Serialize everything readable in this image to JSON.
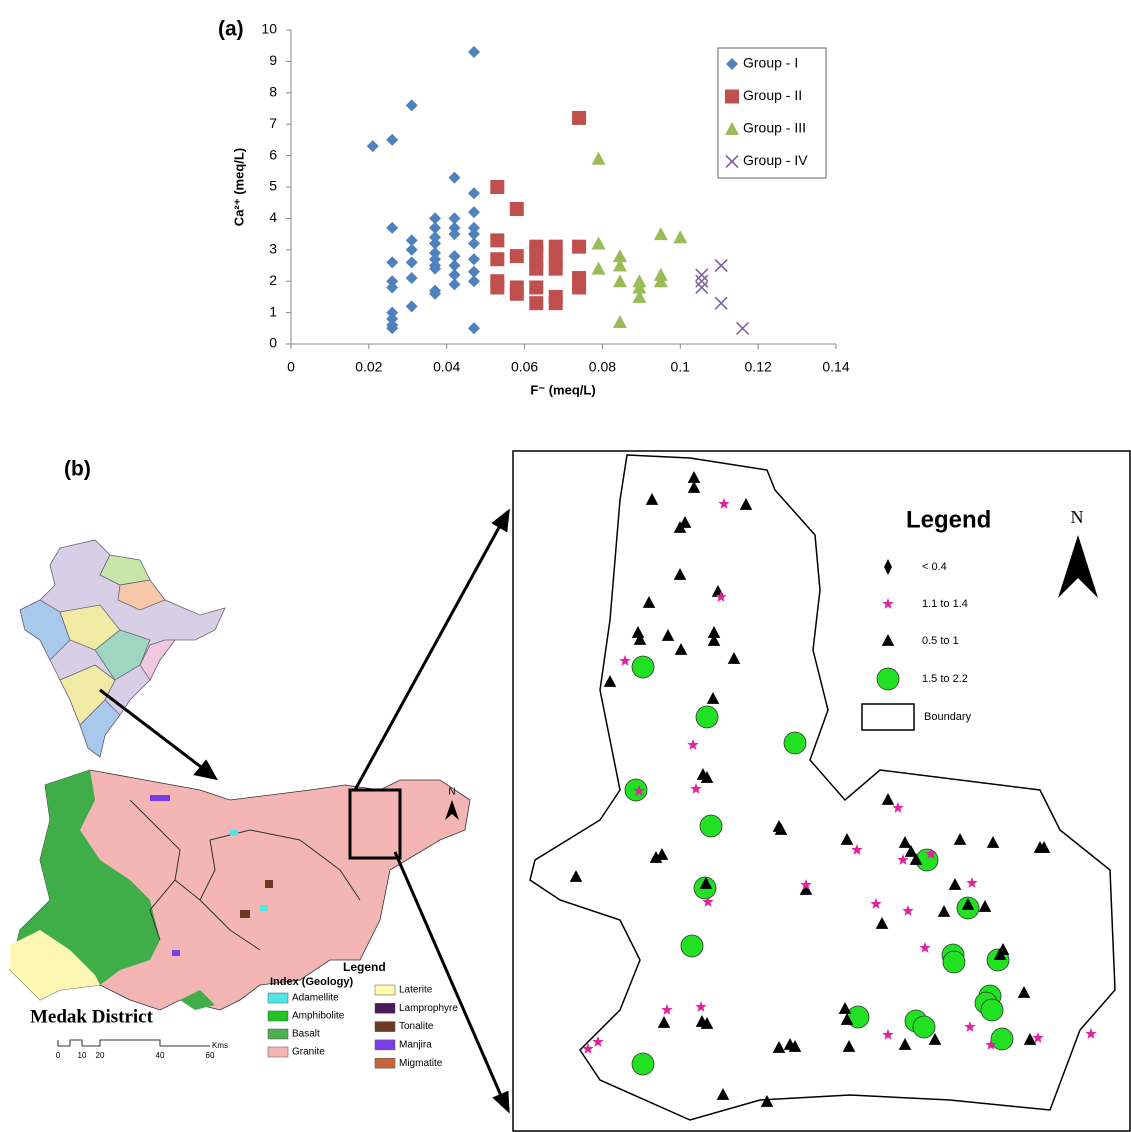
{
  "chart_data": {
    "type": "scatter",
    "title": "(a)",
    "x_label": "F⁻ (meq/L)",
    "y_label": "Ca²⁺ (meq/L)",
    "xlim": [
      0,
      0.14
    ],
    "xticks": [
      0,
      0.02,
      0.04,
      0.06,
      0.08,
      0.1,
      0.12,
      0.14
    ],
    "ylim": [
      0,
      10
    ],
    "yticks": [
      0,
      1,
      2,
      3,
      4,
      5,
      6,
      7,
      8,
      9,
      10
    ],
    "grid": false,
    "legend": "upper right",
    "series": [
      {
        "name": "Group - I",
        "color": "#4f81bd",
        "marker": "diamond",
        "x": [
          0.021,
          0.026,
          0.031,
          0.047,
          0.042,
          0.047,
          0.047,
          0.026,
          0.031,
          0.031,
          0.037,
          0.037,
          0.037,
          0.037,
          0.042,
          0.042,
          0.042,
          0.047,
          0.047,
          0.047,
          0.026,
          0.031,
          0.037,
          0.037,
          0.037,
          0.037,
          0.042,
          0.042,
          0.042,
          0.047,
          0.047,
          0.026,
          0.026,
          0.031,
          0.037,
          0.037,
          0.042,
          0.047,
          0.031,
          0.026,
          0.026,
          0.026,
          0.026,
          0.047
        ],
        "values": [
          6.3,
          6.5,
          7.6,
          9.3,
          5.3,
          4.8,
          4.2,
          3.7,
          3.3,
          3.0,
          4.0,
          3.7,
          3.4,
          3.2,
          4.0,
          3.7,
          3.5,
          3.7,
          3.5,
          3.2,
          2.6,
          2.6,
          2.9,
          2.7,
          2.5,
          2.4,
          2.8,
          2.5,
          2.2,
          2.7,
          2.3,
          2.0,
          1.8,
          2.1,
          1.7,
          1.6,
          1.9,
          2.0,
          1.2,
          1.0,
          0.8,
          0.6,
          0.5,
          0.5
        ]
      },
      {
        "name": "Group - II",
        "color": "#c0504d",
        "marker": "square",
        "x": [
          0.074,
          0.053,
          0.058,
          0.053,
          0.053,
          0.053,
          0.053,
          0.058,
          0.058,
          0.058,
          0.063,
          0.063,
          0.063,
          0.063,
          0.063,
          0.063,
          0.068,
          0.068,
          0.068,
          0.068,
          0.068,
          0.074,
          0.074,
          0.074
        ],
        "values": [
          7.2,
          5.0,
          4.3,
          3.3,
          2.7,
          2.0,
          1.8,
          2.8,
          1.8,
          1.6,
          3.1,
          2.9,
          2.6,
          2.4,
          1.8,
          1.3,
          3.1,
          2.7,
          2.4,
          1.5,
          1.3,
          3.1,
          2.1,
          1.8
        ]
      },
      {
        "name": "Group - III",
        "color": "#9bbb59",
        "marker": "triangle",
        "x": [
          0.079,
          0.079,
          0.079,
          0.0845,
          0.0845,
          0.0845,
          0.0845,
          0.0895,
          0.0895,
          0.0895,
          0.095,
          0.095,
          0.095,
          0.1
        ],
        "values": [
          5.9,
          3.2,
          2.4,
          2.8,
          2.5,
          2.0,
          0.7,
          2.0,
          1.8,
          1.5,
          3.5,
          2.2,
          2.0,
          3.4
        ]
      },
      {
        "name": "Group - IV",
        "color": "#8064a2",
        "marker": "x",
        "x": [
          0.1055,
          0.1055,
          0.1055,
          0.1105,
          0.1105,
          0.116
        ],
        "values": [
          2.2,
          2.0,
          1.8,
          2.5,
          1.3,
          0.5
        ]
      }
    ]
  },
  "panel_b": {
    "label": "(b)",
    "district_map": {
      "title": "Medak District",
      "legend_title": "Legend",
      "index_title": "Index (Geology)",
      "items": [
        "Adamellite",
        "Amphibolite",
        "Basalt",
        "Granite",
        "Laterite",
        "Lamprophyre",
        "Tonalite",
        "Manjira",
        "Migmatite"
      ],
      "scale_labels": [
        "0",
        "10",
        "20",
        "40",
        "60"
      ],
      "scale_unit": "Kms",
      "north": "N"
    },
    "detail_map": {
      "legend_title": "Legend",
      "items": [
        "< 0.4",
        "1.1 to 1.4",
        "0.5 to 1",
        "1.5 to 2.2",
        "Boundary"
      ],
      "north": "N"
    }
  }
}
